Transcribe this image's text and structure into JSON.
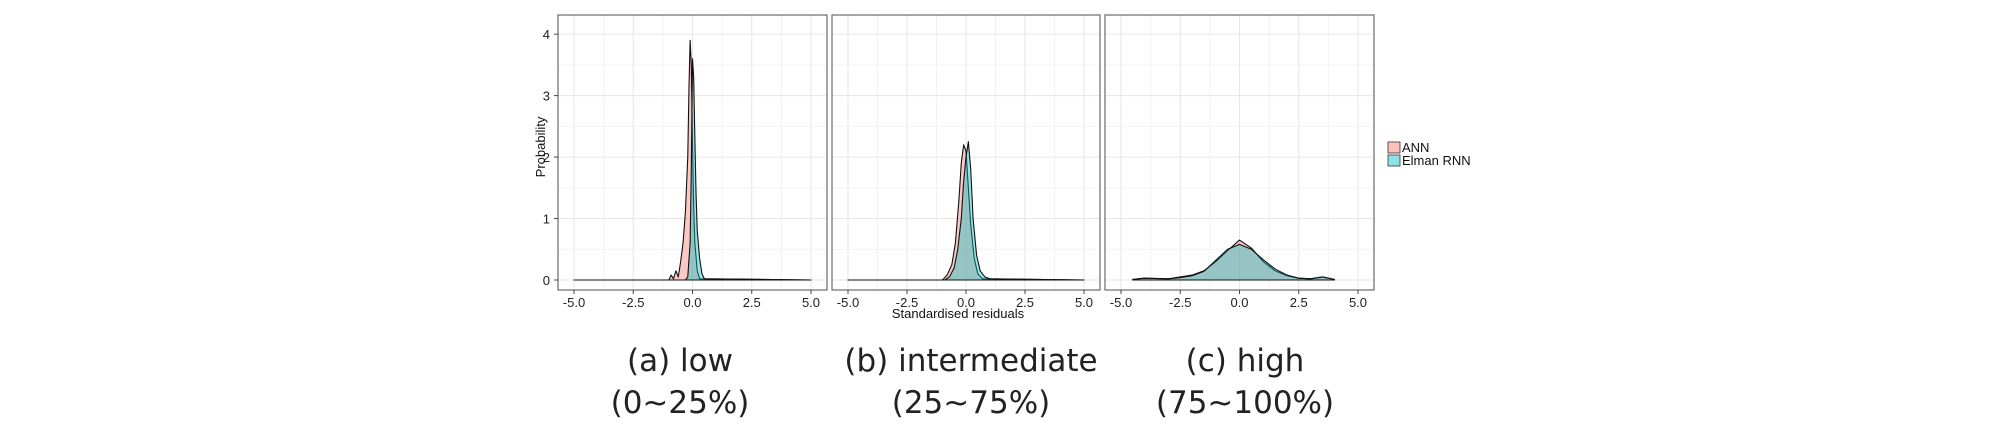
{
  "chart_data": {
    "type": "area",
    "xlabel": "Standardised residuals",
    "ylabel": "Probability",
    "xlim": [
      -5.0,
      5.0
    ],
    "ylim": [
      0,
      4.1
    ],
    "x_ticks": [
      "-5.0",
      "-2.5",
      "0.0",
      "2.5",
      "5.0"
    ],
    "y_ticks": [
      "0",
      "1",
      "2",
      "3",
      "4"
    ],
    "grid": true,
    "legend_position": "right",
    "legend": [
      {
        "label": "ANN",
        "color": "#F8766D"
      },
      {
        "label": "Elman RNN",
        "color": "#00BFC4"
      }
    ],
    "panels": [
      {
        "caption_line1": "(a) low",
        "caption_line2": "(0~25%)",
        "series": [
          {
            "name": "ANN",
            "color": "#F8766D",
            "x": [
              -5.0,
              -1.0,
              -0.9,
              -0.8,
              -0.7,
              -0.6,
              -0.5,
              -0.4,
              -0.3,
              -0.2,
              -0.15,
              -0.1,
              -0.05,
              0.0,
              0.05,
              0.1,
              0.2,
              0.3,
              5.0
            ],
            "y": [
              0,
              0,
              0.08,
              0.02,
              0.15,
              0.05,
              0.3,
              0.6,
              1.1,
              2.0,
              3.1,
              3.9,
              3.5,
              2.2,
              1.2,
              0.6,
              0.15,
              0.02,
              0
            ]
          },
          {
            "name": "Elman RNN",
            "color": "#00BFC4",
            "x": [
              -5.0,
              -0.3,
              -0.2,
              -0.1,
              -0.05,
              0.0,
              0.05,
              0.1,
              0.15,
              0.2,
              0.3,
              0.4,
              0.5,
              5.0
            ],
            "y": [
              0,
              0,
              0.05,
              0.6,
              1.8,
              3.6,
              3.3,
              2.3,
              1.4,
              0.8,
              0.35,
              0.1,
              0.02,
              0
            ]
          }
        ]
      },
      {
        "caption_line1": "(b) intermediate",
        "caption_line2": "(25~75%)",
        "series": [
          {
            "name": "ANN",
            "color": "#F8766D",
            "x": [
              -5.0,
              -1.0,
              -0.8,
              -0.6,
              -0.45,
              -0.3,
              -0.2,
              -0.1,
              0.0,
              0.1,
              0.2,
              0.35,
              0.5,
              0.7,
              5.0
            ],
            "y": [
              0,
              0,
              0.08,
              0.25,
              0.6,
              1.3,
              1.9,
              2.2,
              2.1,
              1.5,
              0.9,
              0.35,
              0.1,
              0.02,
              0
            ]
          },
          {
            "name": "Elman RNN",
            "color": "#00BFC4",
            "x": [
              -5.0,
              -0.9,
              -0.7,
              -0.5,
              -0.35,
              -0.2,
              -0.1,
              0.0,
              0.1,
              0.2,
              0.3,
              0.45,
              0.6,
              0.8,
              1.0,
              5.0
            ],
            "y": [
              0,
              0,
              0.05,
              0.2,
              0.5,
              1.0,
              1.6,
              2.0,
              2.25,
              1.8,
              1.0,
              0.4,
              0.15,
              0.05,
              0.02,
              0
            ]
          }
        ]
      },
      {
        "caption_line1": "(c) high",
        "caption_line2": "(75~100%)",
        "series": [
          {
            "name": "ANN",
            "color": "#F8766D",
            "x": [
              -4.5,
              -4.0,
              -3.0,
              -2.5,
              -2.0,
              -1.5,
              -1.0,
              -0.5,
              0.0,
              0.5,
              1.0,
              1.5,
              2.0,
              2.5,
              3.0,
              3.5,
              4.0
            ],
            "y": [
              0.01,
              0.03,
              0.02,
              0.05,
              0.08,
              0.15,
              0.3,
              0.48,
              0.65,
              0.52,
              0.3,
              0.15,
              0.07,
              0.03,
              0.02,
              0.05,
              0.01
            ]
          },
          {
            "name": "Elman RNN",
            "color": "#00BFC4",
            "x": [
              -4.5,
              -4.0,
              -3.0,
              -2.5,
              -2.0,
              -1.5,
              -1.0,
              -0.5,
              0.0,
              0.5,
              1.0,
              1.5,
              2.0,
              2.5,
              3.0,
              3.5,
              4.0
            ],
            "y": [
              0.01,
              0.03,
              0.02,
              0.04,
              0.07,
              0.14,
              0.32,
              0.5,
              0.58,
              0.5,
              0.33,
              0.18,
              0.08,
              0.03,
              0.02,
              0.05,
              0.01
            ]
          }
        ]
      }
    ]
  }
}
